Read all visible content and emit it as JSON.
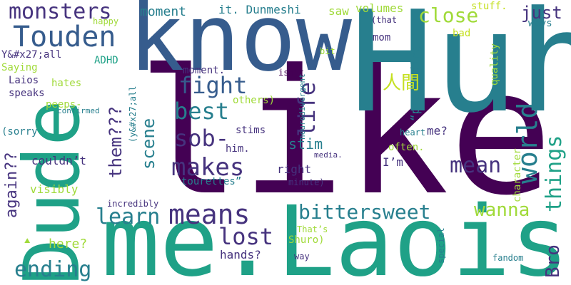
{
  "words": {
    "like": "like",
    "huh": "Huh",
    "know": "know",
    "dude": "Dude",
    "me_laois": "me.Laois",
    "touden": "Touden",
    "monsters": "monsters",
    "means": "means",
    "bittersweet": "bittersweet",
    "world": "world",
    "things": "things",
    "makes": "makes",
    "fight": "fight",
    "best": "best",
    "sob": "sob-",
    "life": "life",
    "lost": "lost",
    "learn": "learn",
    "ending": "ending",
    "wanna": "wanna",
    "mean": "mean",
    "close": "close",
    "just": "just",
    "bro": "Bro",
    "scene": "scene",
    "them": "them???",
    "again": "again??",
    "moment": "moment",
    "it_dunmeshi": "it. Dunmeshi",
    "saw": "saw",
    "volumes": "volumes",
    "stuff": "stuff.",
    "ways": "ways",
    "bad": "bad",
    "mom": "mom",
    "that": "(that",
    "bit": "bit",
    "happy": "happy",
    "yall_1": "Y&#x27;all",
    "adhd": "ADHD",
    "saying": "Saying",
    "moment_dot": "moment.",
    "isnt": "isn’t",
    "neurodivergent": "neurodivergent",
    "pretending": "“pretending",
    "quality": "quality",
    "cjk": "人間",
    "laios": "Laios",
    "hates": "hates",
    "speaks": "speaks",
    "peeps": "peeps-",
    "confirmed": "confirmed",
    "yall_2": "(y&#x27;all",
    "others": "others)",
    "sorry": "(sorry",
    "stims": "stims",
    "him": "him.",
    "stim": "stim",
    "heart": "heart",
    "me_q": "me?",
    "character": "character",
    "often": "often.",
    "couldnt": "couldn’t",
    "tourettes": "tourettes”",
    "media": "media.",
    "right": "right",
    "im": "I’m",
    "visibly": "visibly",
    "minute": "minute)",
    "incredibly": "incredibly",
    "here": "here?",
    "hands": "hands?",
    "thats": "That’s",
    "shuro": "Shuro)",
    "special": "special",
    "fandom": "fandom",
    "way": "way",
    "small_glyph": "⛰"
  }
}
